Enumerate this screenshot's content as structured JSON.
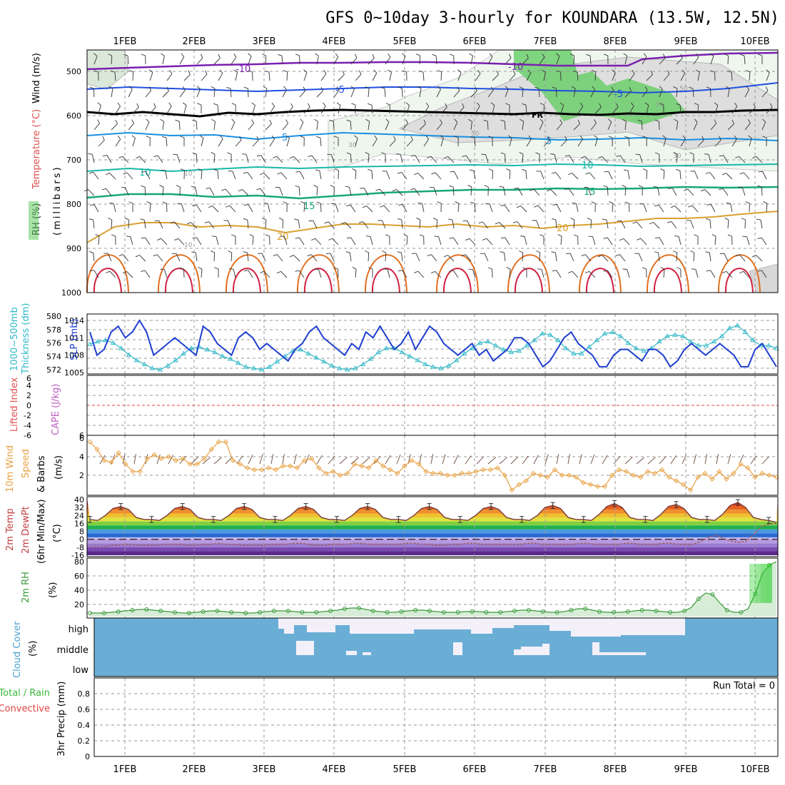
{
  "title": "GFS 0~10day 3-hourly for KOUNDARA (13.5W, 12.5N)",
  "dates": [
    "1FEB",
    "2FEB",
    "3FEB",
    "4FEB",
    "5FEB",
    "6FEB",
    "7FEB",
    "8FEB",
    "9FEB",
    "10FEB"
  ],
  "colors": {
    "temp_minus10": "#7a1fb0",
    "temp_minus5": "#1f4fe0",
    "temp_freezing": "#000000",
    "temp_plus5": "#1a8fe0",
    "temp_plus10": "#18b8a8",
    "temp_plus15": "#18a878",
    "temp_plus20": "#d8a030",
    "temp_warm": "#e07020",
    "temp_hot": "#d02040",
    "rh_green": "#5ec85e",
    "slp": "#1f3fd0",
    "thickness": "#30b8c8",
    "wind10m": "#e8a040",
    "rh2m": "#3a9a3a",
    "cloud": "#6aaed6",
    "cloud_clear": "#f4f0fa",
    "lifted_zero": "#e04040"
  },
  "panels": {
    "upper": {
      "label_wind": "Wind (m/s)",
      "label_temp": "Temperature (°C)",
      "label_rh": "RH (%)",
      "label_mb": "(millibars)",
      "ticks": [
        "500",
        "600",
        "700",
        "800",
        "900",
        "1000"
      ],
      "contour_labels": {
        "m10": "-10",
        "m5": "-5",
        "fr": "FR",
        "p5": "5",
        "p10": "10",
        "p15": "15",
        "p20": "20",
        "rh30": "30",
        "rh50": "50",
        "rh70": "70",
        "rh10": "10"
      }
    },
    "slp": {
      "label_thk": "Thickness (dm)",
      "label_thk2": "1000~500mb",
      "label_slp": "SLP (mb)",
      "left_ticks": [
        "572",
        "574",
        "576",
        "578",
        "580"
      ],
      "right_ticks": [
        "1005",
        "1008",
        "1011",
        "1014"
      ]
    },
    "cape": {
      "label_li": "Lifted Index",
      "label_cape": "CAPE (J/kg)",
      "left_ticks": [
        "6",
        "4",
        "2",
        "0",
        "-2",
        "-4",
        "-6"
      ],
      "right_ticks": [
        "6"
      ]
    },
    "wind": {
      "label1": "10m Wind",
      "label2": "Speed",
      "label3": "& Barbs",
      "label4": "(m/s)",
      "ticks": [
        "2",
        "4",
        "6"
      ]
    },
    "temp2m": {
      "label1": "2m Temp",
      "label2": "2m DewPt",
      "label3": "(6hr Min/Max)",
      "label4": "(°C)",
      "ticks": [
        "40",
        "32",
        "24",
        "16",
        "8",
        "0",
        "-8",
        "-16"
      ]
    },
    "rh2m": {
      "label1": "2m RH",
      "label2": "(%)",
      "ticks": [
        "20",
        "40",
        "60",
        "80"
      ]
    },
    "cloud": {
      "label1": "Cloud Cover",
      "label2": "(%)",
      "levels": [
        "high",
        "middle",
        "low"
      ]
    },
    "precip": {
      "label1": "Total / Rain",
      "label2": "Convective",
      "label3": "3hr Precip (mm)",
      "run_total": "Run Total = 0",
      "ticks": [
        "0",
        "0.2",
        "0.4",
        "0.6",
        "0.8"
      ]
    }
  },
  "chart_data": [
    {
      "type": "line",
      "title": "1000~500mb Thickness (dm) and SLP (mb)",
      "x": "3-hourly steps from 1FEB to 10FEB",
      "series": [
        {
          "name": "SLP (mb)",
          "axis": "right",
          "ylim": [
            1005,
            1014
          ],
          "values": [
            1012,
            1008,
            1009,
            1012,
            1013,
            1011,
            1012,
            1014,
            1012,
            1008,
            1009,
            1010,
            1011,
            1010,
            1009,
            1008,
            1013,
            1012,
            1010,
            1009,
            1008,
            1011,
            1012,
            1011,
            1009,
            1010,
            1009,
            1008,
            1007,
            1009,
            1010,
            1012,
            1013,
            1011,
            1010,
            1009,
            1008,
            1010,
            1009,
            1012,
            1011,
            1013,
            1011,
            1009,
            1010,
            1012,
            1009,
            1011,
            1013,
            1012,
            1010,
            1009,
            1008,
            1009,
            1010,
            1008,
            1009,
            1007,
            1008,
            1009,
            1011,
            1011,
            1010,
            1008,
            1006,
            1007,
            1009,
            1011,
            1012,
            1010,
            1009,
            1008,
            1006,
            1006,
            1008,
            1009,
            1009,
            1008,
            1007,
            1009,
            1009,
            1008,
            1006,
            1007,
            1009,
            1010,
            1009,
            1008,
            1009,
            1010,
            1009,
            1008,
            1006,
            1006,
            1009,
            1010,
            1008,
            1006
          ]
        },
        {
          "name": "Thickness (dm)",
          "axis": "left",
          "ylim": [
            572,
            580
          ],
          "values": [
            575.8,
            576.2,
            576.4,
            576.0,
            575.2,
            574.2,
            573.4,
            572.8,
            572.2,
            572.0,
            572.6,
            573.4,
            574.4,
            575.2,
            575.4,
            575.0,
            574.6,
            574.0,
            573.6,
            573.0,
            572.4,
            572.2,
            572.0,
            572.4,
            573.2,
            574.0,
            574.8,
            575.0,
            574.4,
            573.8,
            573.2,
            572.6,
            572.2,
            572.0,
            572.2,
            572.8,
            573.6,
            574.6,
            575.2,
            575.2,
            574.6,
            574.0,
            573.4,
            572.8,
            572.4,
            572.2,
            572.6,
            573.4,
            574.4,
            575.2,
            576.0,
            576.2,
            575.6,
            575.0,
            574.6,
            574.8,
            575.6,
            576.4,
            577.4,
            577.2,
            576.4,
            575.2,
            574.4,
            574.4,
            575.4,
            576.4,
            577.4,
            577.6,
            577.0,
            576.0,
            575.2,
            574.8,
            575.2,
            576.2,
            577.0,
            577.2,
            577.0,
            576.2,
            575.6,
            575.6,
            576.2,
            577.0,
            578.2,
            578.6,
            577.6,
            576.4,
            575.6,
            575.6,
            575.2
          ]
        }
      ]
    },
    {
      "type": "line",
      "title": "10m Wind Speed (m/s)",
      "ylim": [
        0,
        6
      ],
      "values": [
        5.6,
        4.8,
        3.6,
        3.4,
        4.4,
        3.2,
        2.4,
        2.4,
        3.8,
        4.2,
        3.8,
        4.0,
        3.6,
        3.8,
        3.2,
        3.2,
        3.8,
        4.8,
        5.6,
        5.6,
        3.6,
        3.2,
        2.8,
        2.6,
        2.6,
        2.8,
        2.6,
        3.0,
        3.0,
        2.8,
        3.6,
        3.8,
        2.8,
        2.2,
        2.4,
        2.0,
        2.2,
        3.2,
        3.0,
        2.8,
        3.6,
        3.0,
        2.6,
        2.2,
        3.0,
        3.6,
        3.2,
        2.4,
        2.2,
        2.2,
        2.0,
        2.0,
        2.2,
        2.2,
        2.4,
        2.6,
        2.6,
        2.8,
        2.0,
        0.4,
        1.0,
        1.4,
        2.2,
        2.0,
        1.8,
        2.6,
        2.0,
        2.0,
        1.8,
        1.2,
        1.0,
        0.8,
        0.8,
        2.0,
        2.6,
        2.4,
        2.0,
        1.8,
        2.4,
        2.2,
        2.6,
        1.8,
        1.4,
        1.0,
        0.4,
        1.8,
        2.2,
        1.6,
        2.4,
        1.6,
        2.2,
        3.2,
        2.8,
        1.8,
        2.2,
        2.0,
        1.8
      ]
    },
    {
      "type": "area",
      "title": "2m RH (%)",
      "ylim": [
        5,
        82
      ],
      "values": [
        8,
        8,
        8,
        9,
        10,
        11,
        12,
        13,
        13,
        12,
        11,
        10,
        9,
        8,
        8,
        9,
        10,
        11,
        11,
        10,
        9,
        9,
        8,
        8,
        9,
        10,
        11,
        11,
        11,
        10,
        9,
        9,
        9,
        10,
        11,
        12,
        14,
        15,
        15,
        13,
        11,
        10,
        9,
        9,
        10,
        11,
        12,
        12,
        11,
        10,
        9,
        9,
        9,
        10,
        10,
        10,
        9,
        9,
        9,
        10,
        11,
        12,
        12,
        11,
        10,
        9,
        9,
        10,
        12,
        14,
        14,
        12,
        10,
        9,
        9,
        9,
        10,
        11,
        12,
        12,
        11,
        10,
        9,
        9,
        11,
        16,
        28,
        36,
        34,
        22,
        12,
        9,
        9,
        14,
        35,
        63,
        75,
        80
      ]
    },
    {
      "type": "line",
      "title": "2m Temp (°C)",
      "ylim": [
        -16,
        40
      ],
      "values": [
        20,
        19,
        24,
        31,
        33,
        30,
        22,
        20,
        20,
        19,
        24,
        31,
        33,
        30,
        22,
        20,
        20,
        19,
        24,
        31,
        33,
        30,
        22,
        20,
        20,
        19,
        24,
        31,
        33,
        30,
        22,
        20,
        20,
        19,
        24,
        31,
        33,
        30,
        22,
        20,
        20,
        19,
        24,
        31,
        33,
        30,
        22,
        20,
        20,
        19,
        24,
        31,
        33,
        30,
        22,
        20,
        20,
        19,
        24,
        32,
        34,
        31,
        22,
        20,
        20,
        19,
        25,
        33,
        36,
        32,
        22,
        20,
        20,
        19,
        25,
        33,
        35,
        31,
        22,
        20,
        20,
        19,
        25,
        34,
        37,
        32,
        22,
        20,
        19,
        17
      ]
    },
    {
      "type": "line",
      "title": "2m DewPt (°C)",
      "ylim": [
        -16,
        40
      ],
      "values": [
        -7,
        -7,
        -7,
        -6,
        -6,
        -5,
        -6,
        -6,
        -6,
        -6,
        -5,
        -5,
        -5,
        -6,
        -6,
        -5,
        -5,
        -4,
        -5,
        -5,
        -6,
        -6,
        -6,
        -6,
        -5,
        -5,
        -5,
        -4,
        -4,
        -5,
        -6,
        -6,
        -5,
        -5,
        -5,
        -4,
        -4,
        -5,
        -5,
        -5,
        -5,
        -5,
        -4,
        -4,
        -5,
        -5,
        -6,
        -6,
        -5,
        -5,
        -4,
        -4,
        -5,
        -5,
        -5,
        -5,
        -5,
        -5,
        -4,
        -4,
        -5,
        -5,
        -5,
        -5,
        -5,
        -4,
        -4,
        -5,
        -5,
        -5,
        -5,
        -4,
        -4,
        -5,
        -5,
        -5,
        -4,
        -4,
        -5,
        -5,
        -5,
        -2,
        2,
        4,
        1,
        -2,
        -3,
        -2,
        5,
        13,
        15,
        16
      ]
    },
    {
      "type": "table",
      "title": "Cloud Cover (%)",
      "rows": [
        "high",
        "middle",
        "low"
      ],
      "note": "high cloud mostly 100% with gaps between 3FEB and 9FEB, scattered middle cloud, low cloud 100%"
    },
    {
      "type": "bar",
      "title": "3hr Precip (mm)",
      "ylim": [
        0,
        1
      ],
      "values": []
    }
  ]
}
